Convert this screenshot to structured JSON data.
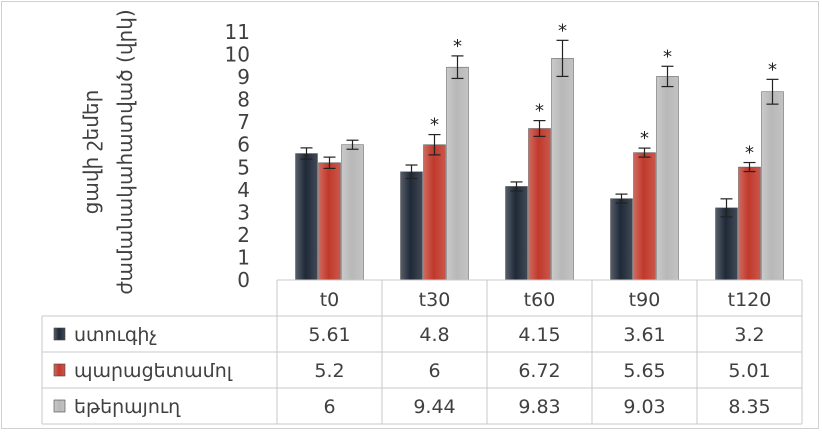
{
  "chart_data": {
    "type": "bar",
    "categories": [
      "t0",
      "t30",
      "t60",
      "t90",
      "t120"
    ],
    "series": [
      {
        "name": "ստուգիչ",
        "values": [
          5.61,
          4.8,
          4.15,
          3.61,
          3.2
        ],
        "errors": [
          0.25,
          0.3,
          0.2,
          0.2,
          0.4
        ],
        "sig": [
          false,
          false,
          false,
          false,
          false
        ],
        "color": "#1f2937"
      },
      {
        "name": "պարացետամոլ",
        "values": [
          5.2,
          6,
          6.72,
          5.65,
          5.01
        ],
        "errors": [
          0.25,
          0.45,
          0.35,
          0.2,
          0.2
        ],
        "sig": [
          false,
          true,
          true,
          true,
          true
        ],
        "color": "#c0392b"
      },
      {
        "name": "եթերայուղ",
        "values": [
          6,
          9.44,
          9.83,
          9.03,
          8.35
        ],
        "errors": [
          0.2,
          0.5,
          0.8,
          0.45,
          0.55
        ],
        "sig": [
          false,
          true,
          true,
          true,
          true
        ],
        "color": "#b8b8b8"
      }
    ],
    "yticks": [
      "0",
      "1",
      "2",
      "3",
      "4",
      "5",
      "6",
      "7",
      "8",
      "9",
      "10",
      "11"
    ],
    "ylim": [
      0,
      11
    ],
    "ylabel_line1": "ցավի շեմեր",
    "ylabel_line2": "ժամանակահատված (վրկ)",
    "significance_mark": "*",
    "data_table": true,
    "grid": false
  }
}
